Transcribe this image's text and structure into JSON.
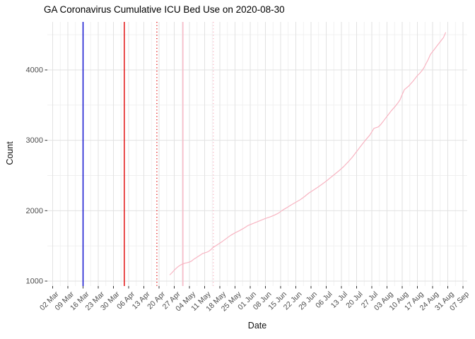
{
  "title": "GA Coronavirus Cumulative ICU Bed Use on 2020-08-30",
  "chart_data": {
    "type": "line",
    "title": "GA Coronavirus Cumulative ICU Bed Use on 2020-08-30",
    "xlabel": "Date",
    "ylabel": "Count",
    "legend": "none",
    "grid": {
      "major": "#E2E2E2",
      "minor": "#EFEFEF",
      "background": "#FFFFFF"
    },
    "tick_label_color": "#4D4D4D",
    "tick_mark_color": "#333333",
    "ylim": [
      930,
      4682
    ],
    "y_ticks": [
      1000,
      2000,
      3000,
      4000
    ],
    "y_minor_ticks": [
      1500,
      2500,
      3500,
      4500
    ],
    "x_ticks": [
      {
        "date": "2020-03-02",
        "label": "02 Mar"
      },
      {
        "date": "2020-03-09",
        "label": "09 Mar"
      },
      {
        "date": "2020-03-16",
        "label": "16 Mar"
      },
      {
        "date": "2020-03-23",
        "label": "23 Mar"
      },
      {
        "date": "2020-03-30",
        "label": "30 Mar"
      },
      {
        "date": "2020-04-06",
        "label": "06 Apr"
      },
      {
        "date": "2020-04-13",
        "label": "13 Apr"
      },
      {
        "date": "2020-04-20",
        "label": "20 Apr"
      },
      {
        "date": "2020-04-27",
        "label": "27 Apr"
      },
      {
        "date": "2020-05-04",
        "label": "04 May"
      },
      {
        "date": "2020-05-11",
        "label": "11 May"
      },
      {
        "date": "2020-05-18",
        "label": "18 May"
      },
      {
        "date": "2020-05-25",
        "label": "25 May"
      },
      {
        "date": "2020-06-01",
        "label": "01 Jun"
      },
      {
        "date": "2020-06-08",
        "label": "08 Jun"
      },
      {
        "date": "2020-06-15",
        "label": "15 Jun"
      },
      {
        "date": "2020-06-22",
        "label": "22 Jun"
      },
      {
        "date": "2020-06-29",
        "label": "29 Jun"
      },
      {
        "date": "2020-07-06",
        "label": "06 Jul"
      },
      {
        "date": "2020-07-13",
        "label": "13 Jul"
      },
      {
        "date": "2020-07-20",
        "label": "20 Jul"
      },
      {
        "date": "2020-07-27",
        "label": "27 Jul"
      },
      {
        "date": "2020-08-03",
        "label": "03 Aug"
      },
      {
        "date": "2020-08-10",
        "label": "10 Aug"
      },
      {
        "date": "2020-08-17",
        "label": "17 Aug"
      },
      {
        "date": "2020-08-24",
        "label": "24 Aug"
      },
      {
        "date": "2020-08-31",
        "label": "31 Aug"
      },
      {
        "date": "2020-09-07",
        "label": "07 Sep"
      }
    ],
    "vlines": [
      {
        "name": "event-line-blue-solid",
        "date": "2020-03-16",
        "color": "#0000CC",
        "style": "solid"
      },
      {
        "name": "event-line-red-solid",
        "date": "2020-04-04",
        "color": "#E00000",
        "style": "solid"
      },
      {
        "name": "event-line-red-dotted",
        "date": "2020-04-19",
        "color": "#E00000",
        "style": "dotted"
      },
      {
        "name": "event-line-pink-solid",
        "date": "2020-05-01",
        "color": "#F8B4C2",
        "style": "solid"
      },
      {
        "name": "event-line-pink-dotted",
        "date": "2020-05-15",
        "color": "#F8B4C2",
        "style": "dotted"
      }
    ],
    "series": [
      {
        "name": "cumulative-icu-bed-use",
        "color": "#F8B4C2",
        "points": [
          [
            "2020-04-25",
            1090
          ],
          [
            "2020-04-26",
            1120
          ],
          [
            "2020-04-27",
            1155
          ],
          [
            "2020-04-28",
            1185
          ],
          [
            "2020-04-29",
            1210
          ],
          [
            "2020-04-30",
            1230
          ],
          [
            "2020-05-01",
            1245
          ],
          [
            "2020-05-02",
            1255
          ],
          [
            "2020-05-03",
            1262
          ],
          [
            "2020-05-04",
            1270
          ],
          [
            "2020-05-05",
            1285
          ],
          [
            "2020-05-06",
            1310
          ],
          [
            "2020-05-07",
            1330
          ],
          [
            "2020-05-08",
            1350
          ],
          [
            "2020-05-09",
            1370
          ],
          [
            "2020-05-10",
            1390
          ],
          [
            "2020-05-11",
            1400
          ],
          [
            "2020-05-12",
            1410
          ],
          [
            "2020-05-13",
            1425
          ],
          [
            "2020-05-14",
            1450
          ],
          [
            "2020-05-15",
            1480
          ],
          [
            "2020-05-17",
            1520
          ],
          [
            "2020-05-19",
            1560
          ],
          [
            "2020-05-21",
            1605
          ],
          [
            "2020-05-23",
            1650
          ],
          [
            "2020-05-25",
            1685
          ],
          [
            "2020-05-27",
            1715
          ],
          [
            "2020-05-29",
            1750
          ],
          [
            "2020-05-31",
            1790
          ],
          [
            "2020-06-02",
            1815
          ],
          [
            "2020-06-04",
            1840
          ],
          [
            "2020-06-06",
            1865
          ],
          [
            "2020-06-08",
            1890
          ],
          [
            "2020-06-10",
            1910
          ],
          [
            "2020-06-12",
            1935
          ],
          [
            "2020-06-14",
            1965
          ],
          [
            "2020-06-16",
            2010
          ],
          [
            "2020-06-18",
            2045
          ],
          [
            "2020-06-20",
            2085
          ],
          [
            "2020-06-22",
            2120
          ],
          [
            "2020-06-24",
            2155
          ],
          [
            "2020-06-26",
            2200
          ],
          [
            "2020-06-28",
            2250
          ],
          [
            "2020-06-30",
            2290
          ],
          [
            "2020-07-02",
            2330
          ],
          [
            "2020-07-04",
            2375
          ],
          [
            "2020-07-06",
            2420
          ],
          [
            "2020-07-08",
            2470
          ],
          [
            "2020-07-10",
            2520
          ],
          [
            "2020-07-12",
            2570
          ],
          [
            "2020-07-14",
            2625
          ],
          [
            "2020-07-16",
            2690
          ],
          [
            "2020-07-18",
            2760
          ],
          [
            "2020-07-20",
            2840
          ],
          [
            "2020-07-22",
            2920
          ],
          [
            "2020-07-24",
            3000
          ],
          [
            "2020-07-26",
            3070
          ],
          [
            "2020-07-27",
            3120
          ],
          [
            "2020-07-28",
            3170
          ],
          [
            "2020-07-29",
            3180
          ],
          [
            "2020-07-30",
            3190
          ],
          [
            "2020-07-31",
            3220
          ],
          [
            "2020-08-01",
            3260
          ],
          [
            "2020-08-02",
            3300
          ],
          [
            "2020-08-03",
            3340
          ],
          [
            "2020-08-04",
            3380
          ],
          [
            "2020-08-05",
            3420
          ],
          [
            "2020-08-06",
            3455
          ],
          [
            "2020-08-07",
            3490
          ],
          [
            "2020-08-08",
            3530
          ],
          [
            "2020-08-09",
            3575
          ],
          [
            "2020-08-10",
            3650
          ],
          [
            "2020-08-11",
            3720
          ],
          [
            "2020-08-12",
            3745
          ],
          [
            "2020-08-13",
            3770
          ],
          [
            "2020-08-14",
            3805
          ],
          [
            "2020-08-15",
            3840
          ],
          [
            "2020-08-16",
            3880
          ],
          [
            "2020-08-17",
            3920
          ],
          [
            "2020-08-18",
            3950
          ],
          [
            "2020-08-19",
            3985
          ],
          [
            "2020-08-20",
            4030
          ],
          [
            "2020-08-21",
            4090
          ],
          [
            "2020-08-22",
            4150
          ],
          [
            "2020-08-23",
            4220
          ],
          [
            "2020-08-24",
            4260
          ],
          [
            "2020-08-25",
            4300
          ],
          [
            "2020-08-26",
            4340
          ],
          [
            "2020-08-27",
            4380
          ],
          [
            "2020-08-28",
            4420
          ],
          [
            "2020-08-29",
            4460
          ],
          [
            "2020-08-30",
            4530
          ]
        ]
      }
    ]
  }
}
